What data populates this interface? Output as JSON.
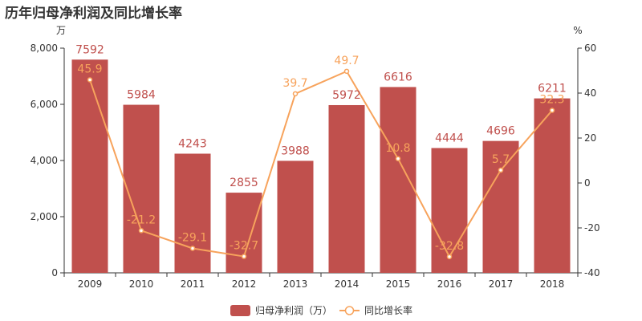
{
  "title": "历年归母净利润及同比增长率",
  "colors": {
    "bar": "#c0504d",
    "line": "#f7a35c",
    "axis": "#333333"
  },
  "chart_data": {
    "type": "bar",
    "title": "历年归母净利润及同比增长率",
    "categories": [
      "2009",
      "2010",
      "2011",
      "2012",
      "2013",
      "2014",
      "2015",
      "2016",
      "2017",
      "2018"
    ],
    "series": [
      {
        "name": "归母净利润（万）",
        "type": "bar",
        "axis": "left",
        "values": [
          7592,
          5984,
          4243,
          2855,
          3988,
          5972,
          6616,
          4444,
          4696,
          6211
        ]
      },
      {
        "name": "同比增长率",
        "type": "line",
        "axis": "right",
        "values": [
          45.9,
          -21.2,
          -29.1,
          -32.7,
          39.7,
          49.7,
          10.8,
          -32.8,
          5.7,
          32.3
        ]
      }
    ],
    "y_left": {
      "unit": "万",
      "ylim": [
        0,
        8000
      ],
      "ticks": [
        "0",
        "2,000",
        "4,000",
        "6,000",
        "8,000"
      ]
    },
    "y_right": {
      "unit": "%",
      "ylim": [
        -40,
        60
      ],
      "ticks": [
        "-40",
        "-20",
        "0",
        "20",
        "40",
        "60"
      ]
    },
    "legend": {
      "position": "bottom-center",
      "items": [
        "归母净利润（万）",
        "同比增长率"
      ]
    },
    "grid": false
  }
}
